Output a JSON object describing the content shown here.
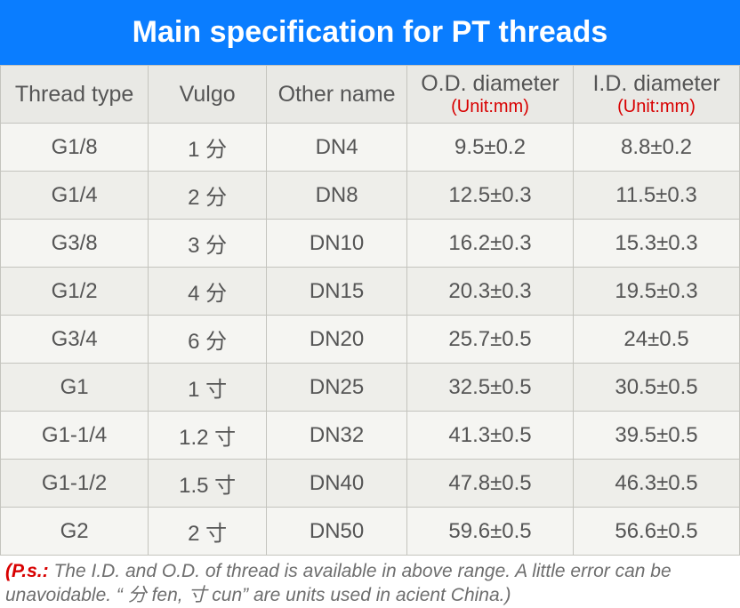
{
  "title": "Main specification for PT threads",
  "style": {
    "title_bg": "#0a7dff",
    "title_color": "#ffffff",
    "title_fontsize": "34px",
    "title_fontweight": "700",
    "header_bg": "#e9e9e5",
    "header_color": "#555555",
    "header_fontsize": "25px",
    "unit_color": "#d80000",
    "unit_fontsize": "20px",
    "cell_color": "#555555",
    "cell_fontsize": "24px",
    "cell_pad_v": "9px",
    "row_odd_bg": "#f5f5f2",
    "row_even_bg": "#eeeeea",
    "border_color": "#c4c4be",
    "footnote_color": "#6e6e6e",
    "footnote_ps_color": "#d80000",
    "footnote_fontsize": "21px"
  },
  "columns": [
    {
      "label": "Thread type",
      "unit": ""
    },
    {
      "label": "Vulgo",
      "unit": ""
    },
    {
      "label": "Other name",
      "unit": ""
    },
    {
      "label": "O.D. diameter",
      "unit": "(Unit:mm)"
    },
    {
      "label": "I.D. diameter",
      "unit": "(Unit:mm)"
    }
  ],
  "rows": [
    [
      "G1/8",
      "1 分",
      "DN4",
      "9.5±0.2",
      "8.8±0.2"
    ],
    [
      "G1/4",
      "2 分",
      "DN8",
      "12.5±0.3",
      "11.5±0.3"
    ],
    [
      "G3/8",
      "3 分",
      "DN10",
      "16.2±0.3",
      "15.3±0.3"
    ],
    [
      "G1/2",
      "4 分",
      "DN15",
      "20.3±0.3",
      "19.5±0.3"
    ],
    [
      "G3/4",
      "6 分",
      "DN20",
      "25.7±0.5",
      "24±0.5"
    ],
    [
      "G1",
      "1 寸",
      "DN25",
      "32.5±0.5",
      "30.5±0.5"
    ],
    [
      "G1-1/4",
      "1.2 寸",
      "DN32",
      "41.3±0.5",
      "39.5±0.5"
    ],
    [
      "G1-1/2",
      "1.5 寸",
      "DN40",
      "47.8±0.5",
      "46.3±0.5"
    ],
    [
      "G2",
      "2 寸",
      "DN50",
      "59.6±0.5",
      "56.6±0.5"
    ]
  ],
  "footnote": {
    "ps_label": "(P.s.:",
    "text": " The I.D. and O.D. of thread is available in above range. A little error can be unavoidable. “ 分 fen, 寸 cun” are units used in acient China.)"
  }
}
